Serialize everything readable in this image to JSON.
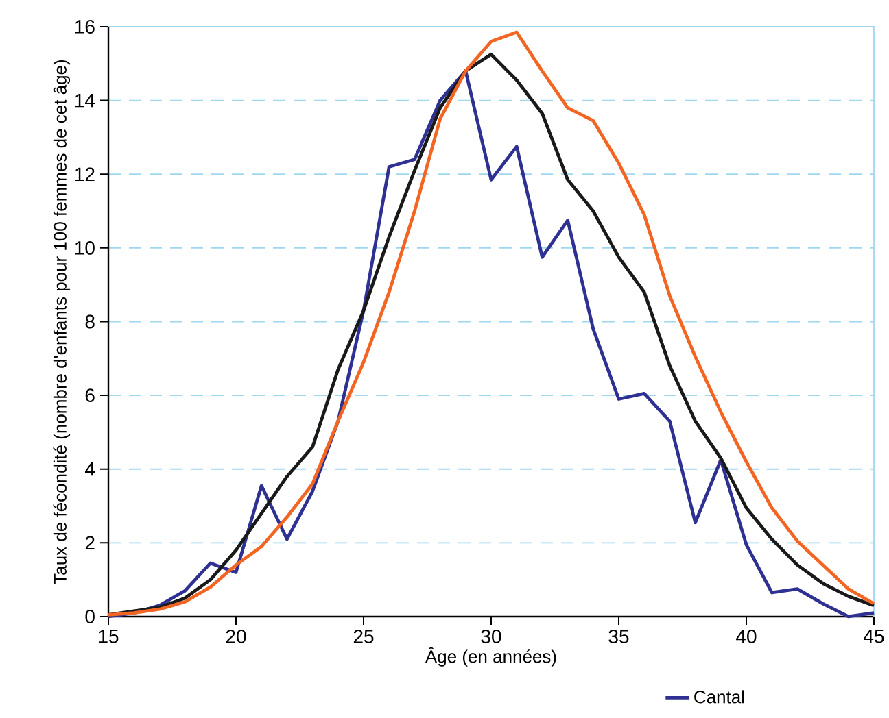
{
  "chart_data": {
    "type": "line",
    "xlabel": "Âge (en années)",
    "ylabel": "Taux de fécondité (nombre d'enfants pour 100 femmes de cet âge)",
    "x": [
      15,
      16,
      17,
      18,
      19,
      20,
      21,
      22,
      23,
      24,
      25,
      26,
      27,
      28,
      29,
      30,
      31,
      32,
      33,
      34,
      35,
      36,
      37,
      38,
      39,
      40,
      41,
      42,
      43,
      44,
      45
    ],
    "series": [
      {
        "name": "Cantal",
        "color": "#2e3192",
        "values": [
          0,
          0.1,
          0.3,
          0.7,
          1.45,
          1.2,
          3.55,
          2.1,
          3.4,
          5.3,
          8.3,
          12.2,
          12.4,
          14.0,
          14.8,
          11.85,
          12.75,
          9.75,
          10.75,
          7.8,
          5.9,
          6.05,
          5.3,
          2.55,
          4.25,
          1.95,
          0.65,
          0.75,
          0.35,
          0.0,
          0.1
        ]
      },
      {
        "color": "#1a1a1a",
        "values": [
          0.05,
          0.15,
          0.25,
          0.5,
          1.0,
          1.8,
          2.8,
          3.8,
          4.6,
          6.7,
          8.3,
          10.3,
          12.1,
          13.8,
          14.8,
          15.25,
          14.55,
          13.65,
          11.85,
          11.0,
          9.75,
          8.8,
          6.8,
          5.3,
          4.3,
          2.95,
          2.1,
          1.4,
          0.9,
          0.55,
          0.3
        ]
      },
      {
        "color": "#f26522",
        "values": [
          0.05,
          0.1,
          0.2,
          0.4,
          0.8,
          1.4,
          1.9,
          2.7,
          3.6,
          5.3,
          6.9,
          8.8,
          11.0,
          13.5,
          14.8,
          15.6,
          15.85,
          14.8,
          13.8,
          13.45,
          12.3,
          10.9,
          8.7,
          7.05,
          5.55,
          4.2,
          2.95,
          2.05,
          1.4,
          0.75,
          0.35
        ]
      }
    ],
    "xlim": [
      15,
      45
    ],
    "xticks": [
      15,
      20,
      25,
      30,
      35,
      40,
      45
    ],
    "ylim": [
      0,
      16
    ],
    "yticks": [
      0,
      2,
      4,
      6,
      8,
      10,
      12,
      14,
      16
    ],
    "grid": "y",
    "legend": "bottom right",
    "line_style": "solid",
    "marker": "none"
  }
}
